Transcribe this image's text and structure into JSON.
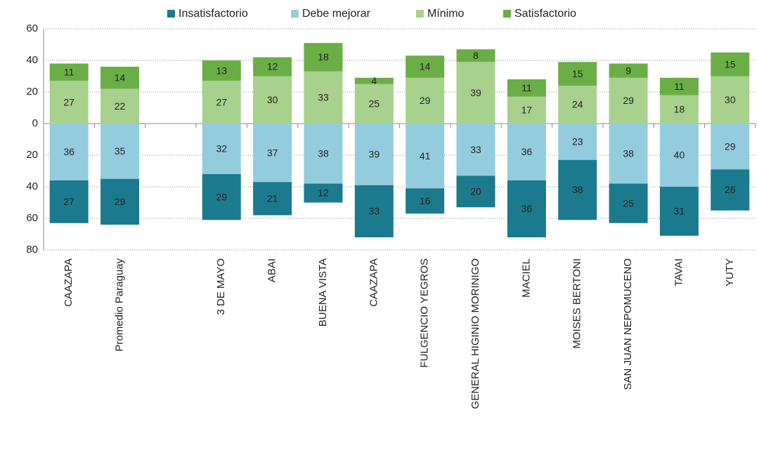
{
  "chart_data": {
    "type": "bar",
    "stacked": true,
    "categories": [
      "CAAZAPA",
      "Promedio Paraguay",
      null,
      "3 DE MAYO",
      "ABAI",
      "BUENA VISTA",
      "CAAZAPA",
      "FULGENCIO YEGROS",
      "GENERAL HIGINIO MORINIGO",
      "MACIEL",
      "MOISES BERTONI",
      "SAN JUAN NEPOMUCENO",
      "TAVAI",
      "YUTY"
    ],
    "series": [
      {
        "name": "Insatisfactorio",
        "color": "#1b7a8e",
        "values": [
          -27,
          -29,
          null,
          -29,
          -21,
          -12,
          -33,
          -16,
          -20,
          -36,
          -38,
          -25,
          -31,
          -26
        ],
        "value_labels": [
          "27",
          "29",
          null,
          "29",
          "21",
          "12",
          "33",
          "16",
          "20",
          "36",
          "38",
          "25",
          "31",
          "26"
        ]
      },
      {
        "name": "Debe mejorar",
        "color": "#93cddd",
        "values": [
          -36,
          -35,
          null,
          -32,
          -37,
          -38,
          -39,
          -41,
          -33,
          -36,
          -23,
          -38,
          -40,
          -29
        ],
        "value_labels": [
          "36",
          "35",
          null,
          "32",
          "37",
          "38",
          "39",
          "41",
          "33",
          "36",
          "23",
          "38",
          "40",
          "29"
        ]
      },
      {
        "name": "Mínimo",
        "color": "#a9d18e",
        "values": [
          27,
          22,
          null,
          27,
          30,
          33,
          25,
          29,
          39,
          17,
          24,
          29,
          18,
          30
        ]
      },
      {
        "name": "Satisfactorio",
        "color": "#6aae45",
        "values": [
          11,
          14,
          null,
          13,
          12,
          18,
          4,
          14,
          8,
          11,
          15,
          9,
          11,
          15
        ]
      }
    ],
    "ylim": [
      -80,
      60
    ],
    "yticks": [
      {
        "value": -80,
        "label": "80"
      },
      {
        "value": -60,
        "label": "60"
      },
      {
        "value": -40,
        "label": "40"
      },
      {
        "value": -20,
        "label": "20"
      },
      0,
      20,
      40,
      60
    ],
    "grid": true,
    "legend": "top"
  }
}
